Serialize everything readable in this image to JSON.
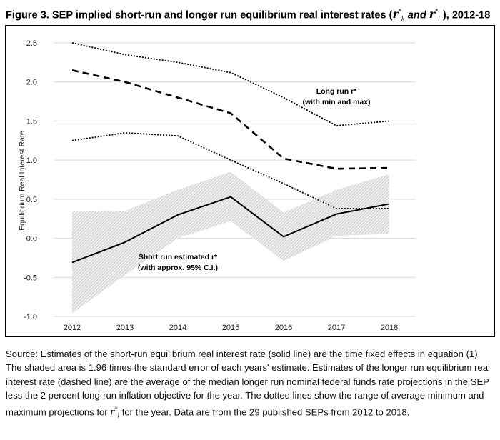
{
  "figure": {
    "title_prefix": "Figure 3. SEP implied short-run and longer run equilibrium real interest rates (",
    "title_r": "r",
    "title_k": "k",
    "title_star": "*",
    "title_and": " and ",
    "title_l": "l",
    "title_suffix": " ), 2012-18"
  },
  "chart_data": {
    "type": "line",
    "title": "",
    "xlabel": "",
    "ylabel": "Equilibrium Real Interest Rate",
    "x": [
      "2012",
      "2013",
      "2014",
      "2015",
      "2016",
      "2017",
      "2018"
    ],
    "yticks": [
      "2.5",
      "2.0",
      "1.5",
      "1.0",
      "0.5",
      "0.0",
      "-0.5",
      "-1.0"
    ],
    "ytick_values": [
      2.5,
      2.0,
      1.5,
      1.0,
      0.5,
      0.0,
      -0.5,
      -1.0
    ],
    "ylim": [
      -1.0,
      2.5
    ],
    "grid": "horizontal",
    "series": [
      {
        "role": "longer-run-max",
        "style": "dotted",
        "values": [
          2.5,
          2.35,
          2.25,
          2.12,
          1.8,
          1.44,
          1.5
        ]
      },
      {
        "role": "longer-run-median",
        "style": "dashed",
        "values": [
          2.15,
          2.0,
          1.8,
          1.6,
          1.02,
          0.89,
          0.9
        ]
      },
      {
        "role": "longer-run-min",
        "style": "dotted",
        "values": [
          1.25,
          1.35,
          1.31,
          1.0,
          0.7,
          0.38,
          0.38
        ]
      },
      {
        "role": "short-run-estimate",
        "style": "solid",
        "values": [
          -0.31,
          -0.05,
          0.3,
          0.53,
          0.02,
          0.31,
          0.44
        ]
      }
    ],
    "confidence_band": {
      "role": "short-run-95ci",
      "lower": [
        -0.96,
        -0.47,
        0.0,
        0.22,
        -0.29,
        0.03,
        0.06
      ],
      "upper": [
        0.34,
        0.35,
        0.62,
        0.85,
        0.33,
        0.62,
        0.82
      ]
    },
    "annotations": [
      {
        "id": "longrun",
        "line1": "Long run r*",
        "line2": "(with min and max)",
        "x": 2017.0,
        "y": 1.85
      },
      {
        "id": "shortrun",
        "line1": "Short run estimated r*",
        "line2": "(with approx. 95% C.I.)",
        "x": 2014.0,
        "y": -0.27
      }
    ]
  },
  "source_note": {
    "part1": "Source: Estimates of the short-run equilibrium real interest rate (solid line) are the time fixed effects in equation (1). The shaded area is 1.96 times the standard error of each years' estimate. Estimates of the longer run equilibrium real interest rate (dashed line) are the average of the median longer run nominal federal funds rate projections in the SEP less the 2 percent long-run inflation objective for the year. The dotted lines show the range of average minimum and maximum projections for ",
    "r": "r",
    "l": "l",
    "star": "*",
    "part2": " for the year. Data are from the 29 published SEPs from 2012 to 2018."
  }
}
